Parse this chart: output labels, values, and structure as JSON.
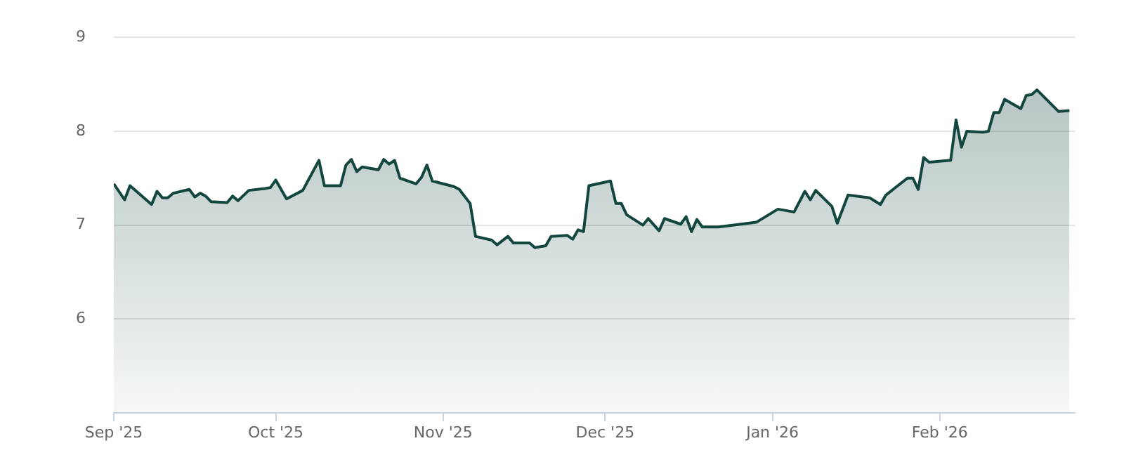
{
  "chart_data": {
    "type": "area",
    "x": [
      "2025-09-01",
      "2025-09-03",
      "2025-09-04",
      "2025-09-08",
      "2025-09-09",
      "2025-09-10",
      "2025-09-11",
      "2025-09-12",
      "2025-09-15",
      "2025-09-16",
      "2025-09-17",
      "2025-09-18",
      "2025-09-19",
      "2025-09-22",
      "2025-09-23",
      "2025-09-24",
      "2025-09-26",
      "2025-09-29",
      "2025-09-30",
      "2025-10-01",
      "2025-10-03",
      "2025-10-06",
      "2025-10-09",
      "2025-10-10",
      "2025-10-13",
      "2025-10-14",
      "2025-10-15",
      "2025-10-16",
      "2025-10-17",
      "2025-10-20",
      "2025-10-21",
      "2025-10-22",
      "2025-10-23",
      "2025-10-24",
      "2025-10-27",
      "2025-10-28",
      "2025-10-29",
      "2025-10-30",
      "2025-11-03",
      "2025-11-04",
      "2025-11-06",
      "2025-11-07",
      "2025-11-10",
      "2025-11-11",
      "2025-11-13",
      "2025-11-14",
      "2025-11-17",
      "2025-11-18",
      "2025-11-20",
      "2025-11-21",
      "2025-11-24",
      "2025-11-25",
      "2025-11-26",
      "2025-11-27",
      "2025-11-28",
      "2025-12-02",
      "2025-12-03",
      "2025-12-04",
      "2025-12-05",
      "2025-12-08",
      "2025-12-09",
      "2025-12-11",
      "2025-12-12",
      "2025-12-15",
      "2025-12-16",
      "2025-12-17",
      "2025-12-18",
      "2025-12-19",
      "2025-12-22",
      "2025-12-29",
      "2026-01-02",
      "2026-01-05",
      "2026-01-07",
      "2026-01-08",
      "2026-01-09",
      "2026-01-12",
      "2026-01-13",
      "2026-01-15",
      "2026-01-19",
      "2026-01-21",
      "2026-01-22",
      "2026-01-26",
      "2026-01-27",
      "2026-01-28",
      "2026-01-29",
      "2026-01-30",
      "2026-02-03",
      "2026-02-04",
      "2026-02-05",
      "2026-02-06",
      "2026-02-09",
      "2026-02-10",
      "2026-02-11",
      "2026-02-12",
      "2026-02-13",
      "2026-02-16",
      "2026-02-17",
      "2026-02-18",
      "2026-02-19",
      "2026-02-23",
      "2026-02-25"
    ],
    "series": [
      {
        "color": "#12463f",
        "values": [
          7.44,
          7.27,
          7.42,
          7.22,
          7.36,
          7.29,
          7.29,
          7.34,
          7.38,
          7.3,
          7.34,
          7.31,
          7.25,
          7.24,
          7.31,
          7.26,
          7.37,
          7.39,
          7.4,
          7.48,
          7.28,
          7.37,
          7.69,
          7.42,
          7.42,
          7.64,
          7.7,
          7.57,
          7.62,
          7.59,
          7.7,
          7.65,
          7.69,
          7.5,
          7.44,
          7.51,
          7.64,
          7.47,
          7.41,
          7.38,
          7.23,
          6.88,
          6.84,
          6.79,
          6.88,
          6.81,
          6.81,
          6.76,
          6.78,
          6.88,
          6.89,
          6.85,
          6.95,
          6.93,
          7.42,
          7.47,
          7.23,
          7.23,
          7.11,
          7.0,
          7.07,
          6.94,
          7.07,
          7.01,
          7.09,
          6.93,
          7.06,
          6.98,
          6.98,
          7.03,
          7.17,
          7.14,
          7.36,
          7.27,
          7.37,
          7.2,
          7.02,
          7.32,
          7.29,
          7.22,
          7.32,
          7.5,
          7.5,
          7.38,
          7.72,
          7.67,
          7.69,
          8.12,
          7.83,
          8.0,
          7.99,
          8.0,
          8.2,
          8.2,
          8.34,
          8.24,
          8.38,
          8.39,
          8.44,
          8.21,
          8.22
        ]
      }
    ],
    "xlim": [
      "2025-09-01",
      "2026-02-26"
    ],
    "xticks": [
      {
        "value": "2025-09-01",
        "label": "Sep '25"
      },
      {
        "value": "2025-10-01",
        "label": "Oct '25"
      },
      {
        "value": "2025-11-01",
        "label": "Nov '25"
      },
      {
        "value": "2025-12-01",
        "label": "Dec '25"
      },
      {
        "value": "2026-01-01",
        "label": "Jan '26"
      },
      {
        "value": "2026-02-01",
        "label": "Feb '26"
      }
    ],
    "ylim": [
      5,
      9
    ],
    "yticks": [
      {
        "value": 5,
        "label": null
      },
      6,
      7,
      8,
      9
    ],
    "grid": "y"
  }
}
